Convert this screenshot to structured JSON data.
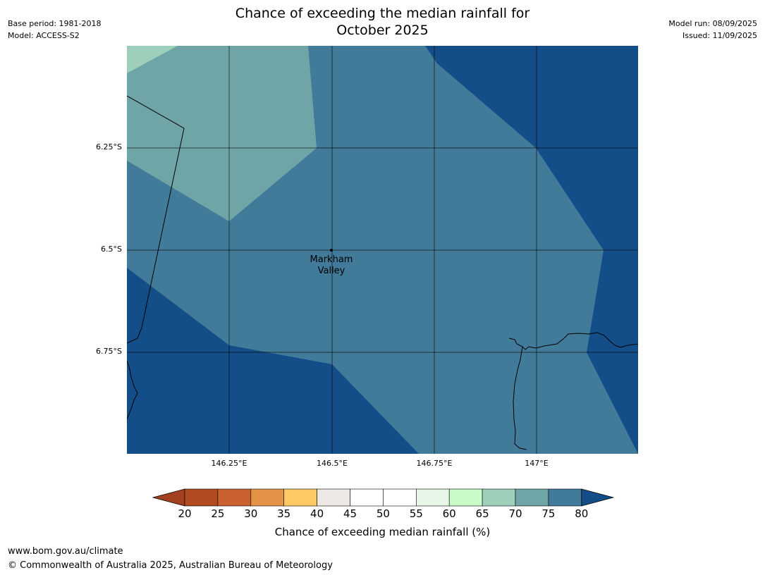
{
  "header": {
    "title_line1": "Chance of exceeding the median rainfall for",
    "title_line2": "October 2025",
    "base_period": "Base period: 1981-2018",
    "model": "Model: ACCESS-S2",
    "model_run": "Model run: 08/09/2025",
    "issued": "Issued: 11/09/2025"
  },
  "map": {
    "lat_ticks": [
      "6.25°S",
      "6.5°S",
      "6.75°S"
    ],
    "lon_ticks": [
      "146.25°E",
      "146.5°E",
      "146.75°E",
      "147°E"
    ],
    "place": {
      "name_line1": "Markham",
      "name_line2": "Valley",
      "lon": 146.5,
      "lat": -6.5
    },
    "extent": {
      "lon": [
        146.0,
        147.25
      ],
      "lat": [
        -6.0,
        -7.0
      ]
    },
    "region_colors": {
      "65-70": "#9dcfba",
      "70-75": "#6fa5a6",
      "75-80": "#427a99",
      "80+": "#144e88"
    },
    "coastline_color": "#000000"
  },
  "colorbar": {
    "ticks": [
      "20",
      "25",
      "30",
      "35",
      "40",
      "45",
      "50",
      "55",
      "60",
      "65",
      "70",
      "75",
      "80"
    ],
    "colors": [
      "#a3401f",
      "#b24a22",
      "#cc6130",
      "#e39346",
      "#ffca63",
      "#ede8e4",
      "#ffffff",
      "#ffffff",
      "#e8f6e8",
      "#c8fbc8",
      "#9dcfba",
      "#6fa5a6",
      "#427a99",
      "#144e88"
    ],
    "label": "Chance of exceeding median rainfall (%)"
  },
  "footer": {
    "url": "www.bom.gov.au/climate",
    "copyright": "© Commonwealth of Australia 2025, Australian Bureau of Meteorology"
  }
}
